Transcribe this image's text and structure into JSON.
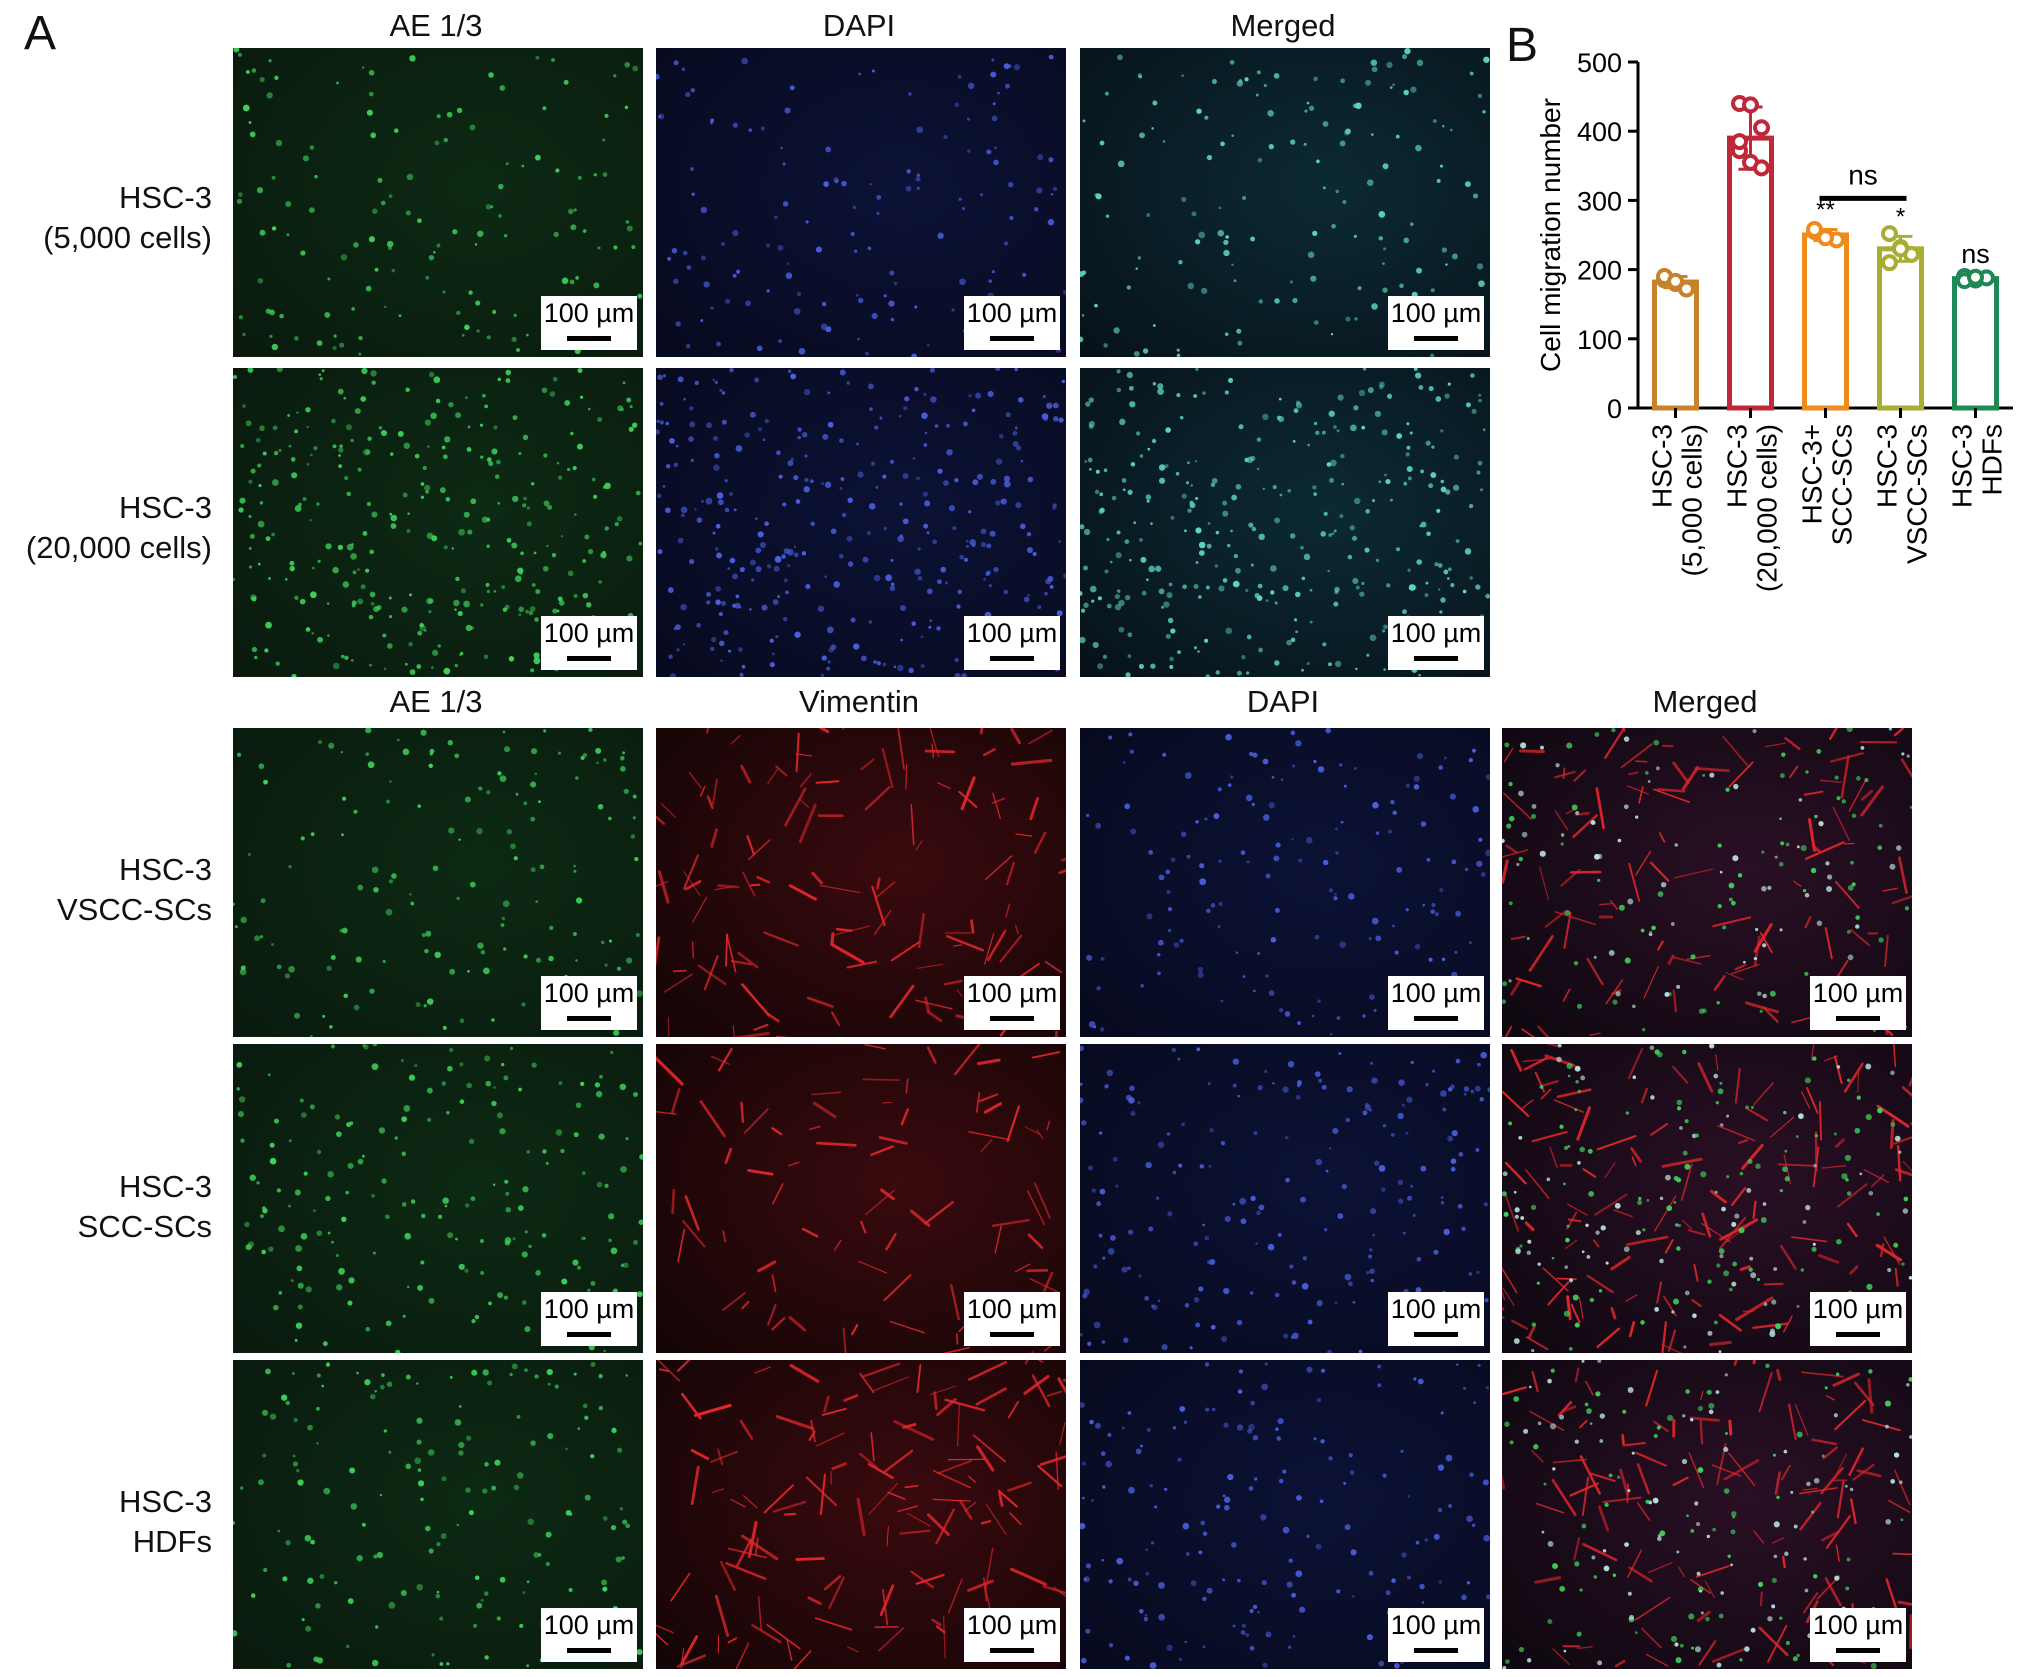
{
  "panel_labels": {
    "a": "A",
    "b": "B"
  },
  "top_block": {
    "headers": [
      "AE 1/3",
      "DAPI",
      "Merged"
    ],
    "rows": [
      {
        "label_line1": "HSC-3",
        "label_line2": "(5,000 cells)"
      },
      {
        "label_line1": "HSC-3",
        "label_line2": "(20,000 cells)"
      }
    ]
  },
  "bottom_block": {
    "headers": [
      "AE 1/3",
      "Vimentin",
      "DAPI",
      "Merged"
    ],
    "rows": [
      {
        "label_line1": "HSC-3",
        "label_line2": "VSCC-SCs"
      },
      {
        "label_line1": "HSC-3",
        "label_line2": "SCC-SCs"
      },
      {
        "label_line1": "HSC-3",
        "label_line2": "HDFs"
      }
    ]
  },
  "scale_bar_text": "100 µm",
  "colors": {
    "green_channel": "#3fd15a",
    "blue_channel": "#4a5fe0",
    "red_channel": "#e0262c",
    "background_dark": "#0b0f0d"
  },
  "chart_data": {
    "type": "bar",
    "ylabel": "Cell migration number",
    "xlabel": "",
    "ylim": [
      0,
      500
    ],
    "yticks": [
      0,
      100,
      200,
      300,
      400,
      500
    ],
    "categories": [
      {
        "line1": "HSC-3",
        "line2": "(5,000 cells)"
      },
      {
        "line1": "HSC-3",
        "line2": "(20,000 cells)"
      },
      {
        "line1": "HSC-3+",
        "line2": "SCC-SCs"
      },
      {
        "line1": "HSC-3",
        "line2": "VSCC-SCs"
      },
      {
        "line1": "HSC-3",
        "line2": "HDFs"
      }
    ],
    "values": [
      182,
      390,
      250,
      230,
      187
    ],
    "error": [
      8,
      45,
      8,
      18,
      5
    ],
    "points": [
      [
        185,
        180,
        172,
        190,
        183
      ],
      [
        440,
        438,
        405,
        372,
        355,
        347,
        385
      ],
      [
        255,
        248,
        243,
        258,
        246
      ],
      [
        252,
        232,
        222,
        210,
        230
      ],
      [
        190,
        185,
        188,
        184,
        189
      ]
    ],
    "bar_colors": [
      "#c8832a",
      "#c0283a",
      "#ef8a1e",
      "#a8ad33",
      "#1d8a55"
    ],
    "significance": [
      "",
      "",
      "**",
      "*",
      "ns"
    ],
    "comparison": {
      "from": 2,
      "to": 3,
      "label": "ns"
    }
  }
}
